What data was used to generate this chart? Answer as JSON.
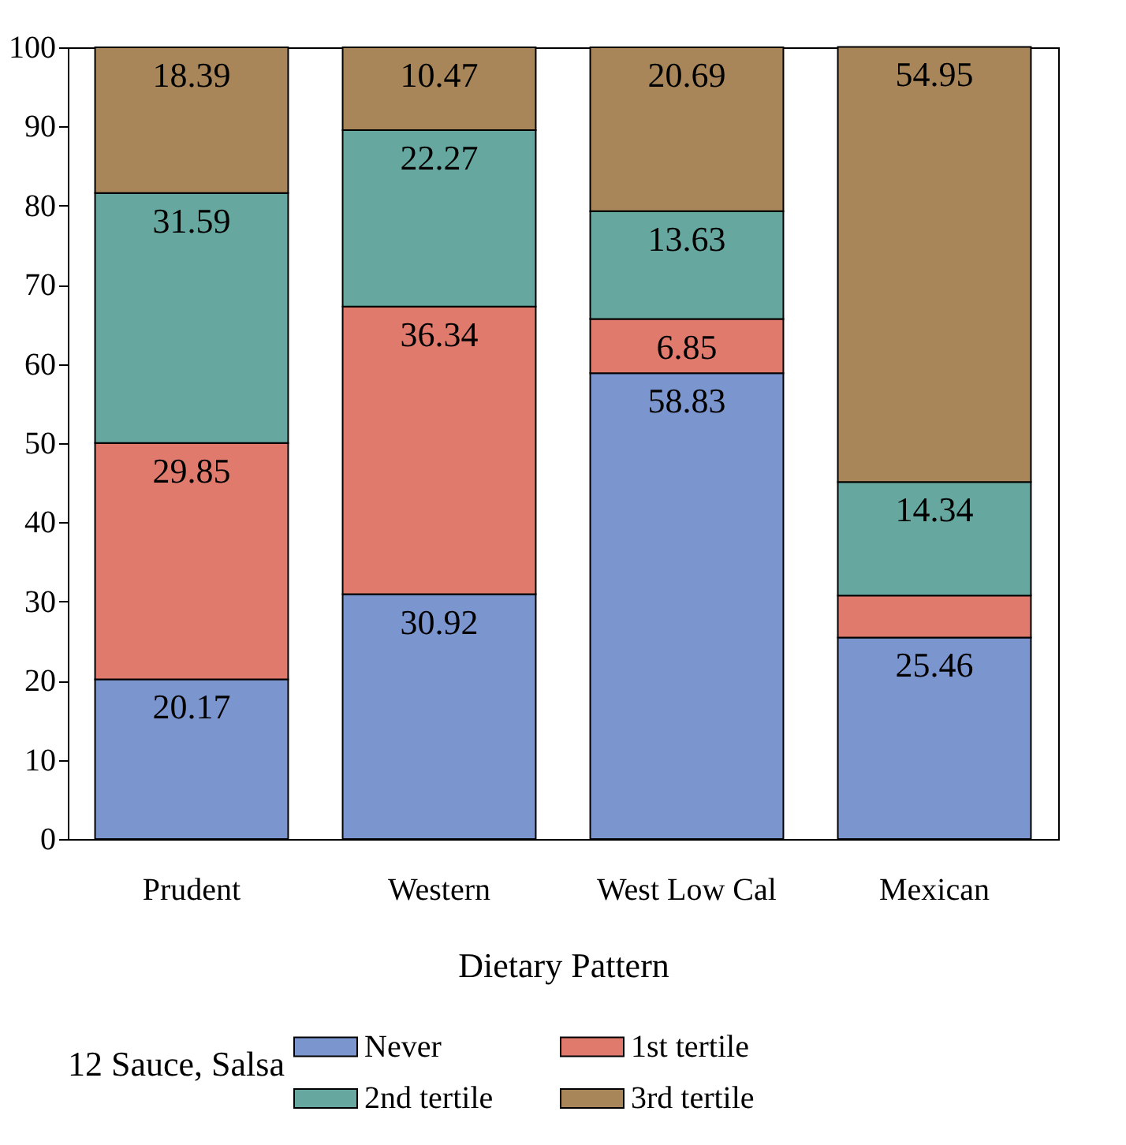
{
  "chart_data": {
    "type": "bar",
    "stacked": true,
    "xlabel": "Dietary Pattern",
    "legend_title": "12 Sauce, Salsa",
    "legend": "bottom",
    "categories": [
      "Prudent",
      "Western",
      "West Low Cal",
      "Mexican"
    ],
    "ylim": [
      0,
      100
    ],
    "yticks": [
      0,
      10,
      20,
      30,
      40,
      50,
      60,
      70,
      80,
      90,
      100
    ],
    "series": [
      {
        "name": "Never",
        "color": "#7b96cf",
        "values": [
          20.17,
          30.92,
          58.83,
          25.46
        ],
        "value_labels": [
          "20.17",
          "30.92",
          "58.83",
          "25.46"
        ]
      },
      {
        "name": "1st tertile",
        "color": "#e07a6c",
        "values": [
          29.85,
          36.34,
          6.85,
          5.3
        ],
        "value_labels": [
          "29.85",
          "36.34",
          "6.85",
          null
        ]
      },
      {
        "name": "2nd tertile",
        "color": "#66a8a0",
        "values": [
          31.59,
          22.27,
          13.63,
          14.34
        ],
        "value_labels": [
          "31.59",
          "22.27",
          "13.63",
          "14.34"
        ]
      },
      {
        "name": "3rd tertile",
        "color": "#a8865a",
        "values": [
          18.39,
          10.47,
          20.69,
          54.95
        ],
        "value_labels": [
          "18.39",
          "10.47",
          "20.69",
          "54.95"
        ]
      }
    ]
  }
}
